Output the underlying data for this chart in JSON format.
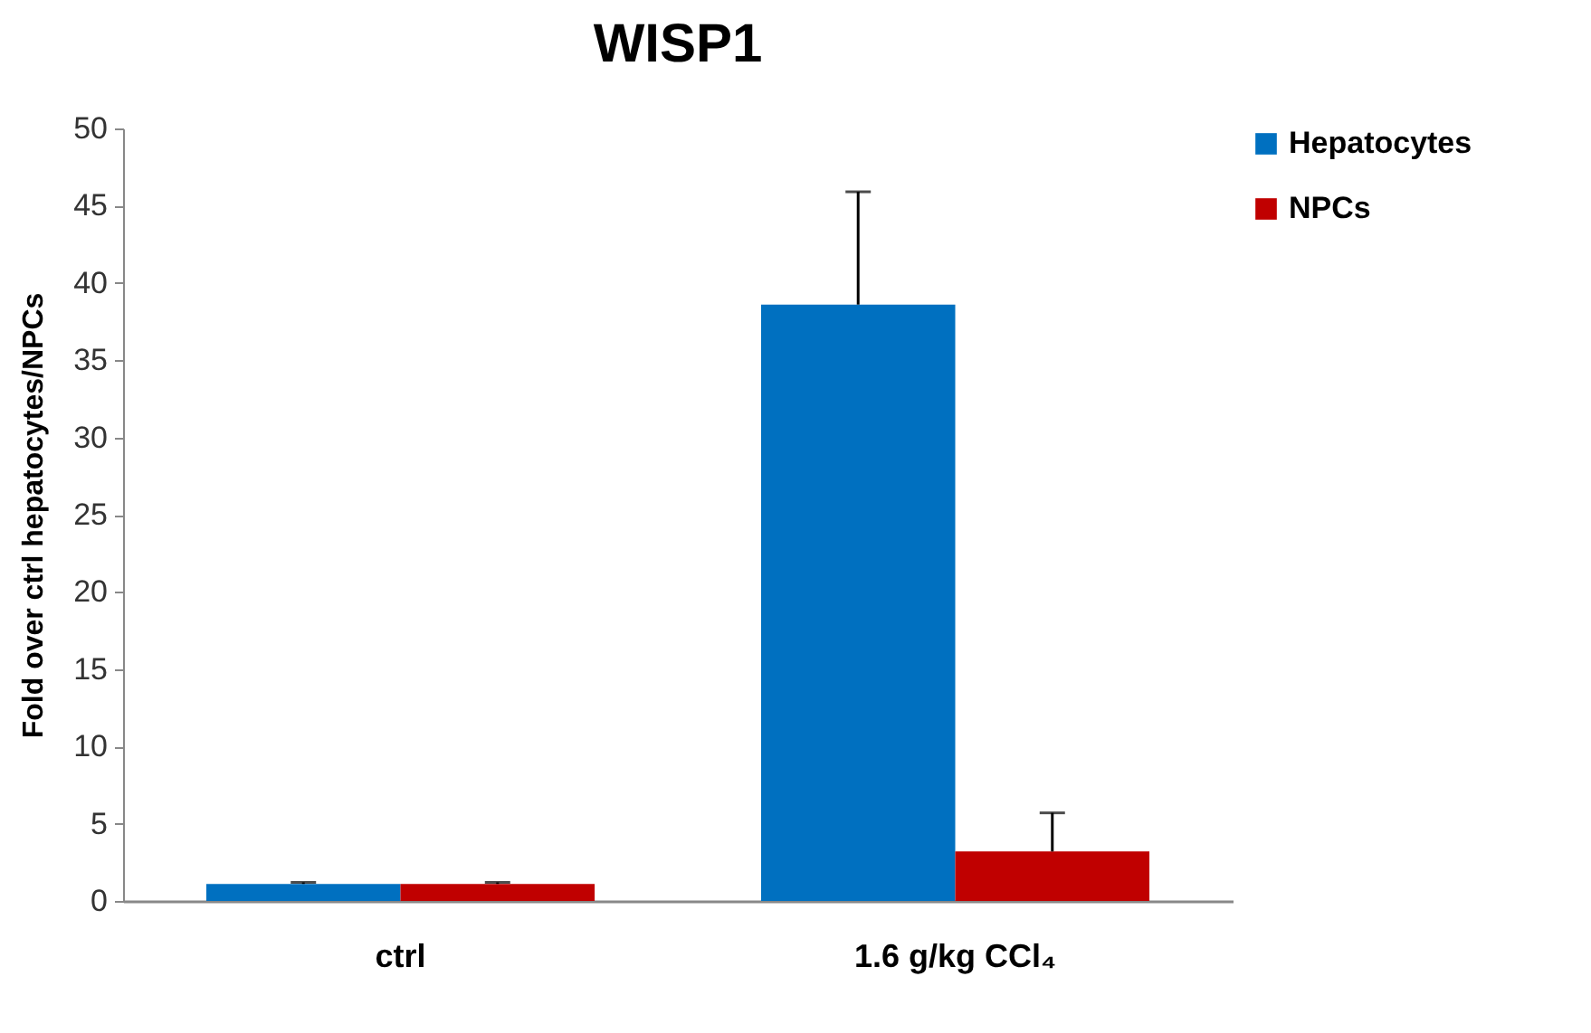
{
  "chart_data": {
    "type": "bar",
    "title": "WISP1",
    "ylabel": "Fold over ctrl hepatocytes/NPCs",
    "categories": [
      "ctrl",
      "1.6 g/kg CCl₄"
    ],
    "series": [
      {
        "name": "Hepatocytes",
        "color": "#0070c0",
        "values": [
          1.1,
          38.6
        ],
        "errors": [
          [
            1.1,
            1.2
          ],
          [
            38.6,
            45.9
          ]
        ]
      },
      {
        "name": "NPCs",
        "color": "#c00000",
        "values": [
          1.1,
          3.2
        ],
        "errors": [
          [
            1.1,
            1.2
          ],
          [
            3.2,
            5.7
          ]
        ]
      }
    ],
    "ylim": [
      0,
      50
    ],
    "yticks": [
      0,
      5,
      10,
      15,
      20,
      25,
      30,
      35,
      40,
      45,
      50
    ],
    "grid": false,
    "legend": "top right"
  }
}
